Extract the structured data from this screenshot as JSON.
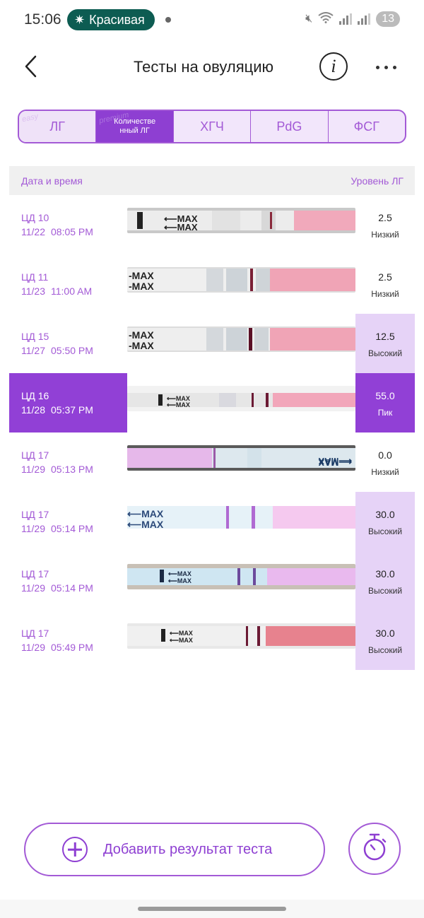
{
  "status_bar": {
    "time": "15:06",
    "notification": "Красивая",
    "battery": "13"
  },
  "header": {
    "title": "Тесты на овуляцию",
    "info_glyph": "i"
  },
  "tabs": [
    {
      "label": "ЛГ",
      "active": false
    },
    {
      "label": "Количественный ЛГ",
      "active": true
    },
    {
      "label": "ХГЧ",
      "active": false
    },
    {
      "label": "PdG",
      "active": false
    },
    {
      "label": "ФСГ",
      "active": false
    }
  ],
  "tab_watermarks": [
    "easy",
    "premium"
  ],
  "table": {
    "col_date": "Дата и время",
    "col_level": "Уровень ЛГ"
  },
  "rows": [
    {
      "cd": "ЦД 10",
      "date": "11/22",
      "time": "08:05 PM",
      "value": "2.5",
      "level": "Низкий"
    },
    {
      "cd": "ЦД 11",
      "date": "11/23",
      "time": "11:00 AM",
      "value": "2.5",
      "level": "Низкий"
    },
    {
      "cd": "ЦД 15",
      "date": "11/27",
      "time": "05:50 PM",
      "value": "12.5",
      "level": "Высокий"
    },
    {
      "cd": "ЦД 16",
      "date": "11/28",
      "time": "05:37 PM",
      "value": "55.0",
      "level": "Пик"
    },
    {
      "cd": "ЦД 17",
      "date": "11/29",
      "time": "05:13 PM",
      "value": "0.0",
      "level": "Низкий"
    },
    {
      "cd": "ЦД 17",
      "date": "11/29",
      "time": "05:14 PM",
      "value": "30.0",
      "level": "Высокий"
    },
    {
      "cd": "ЦД 17",
      "date": "11/29",
      "time": "05:14 PM",
      "value": "30.0",
      "level": "Высокий"
    },
    {
      "cd": "ЦД 17",
      "date": "11/29",
      "time": "05:49 PM",
      "value": "30.0",
      "level": "Высокий"
    }
  ],
  "strip_text": "MAX",
  "add_button": {
    "label": "Добавить результат теста"
  },
  "icons": {
    "back": "chevron-left-icon",
    "info": "info-icon",
    "more": "more-dots-icon",
    "add": "plus-circle-icon",
    "timer": "stopwatch-icon"
  },
  "colors": {
    "accent": "#8e3fd2",
    "accent_light": "#e6d3f7",
    "pill_bg": "#0d5c52"
  }
}
